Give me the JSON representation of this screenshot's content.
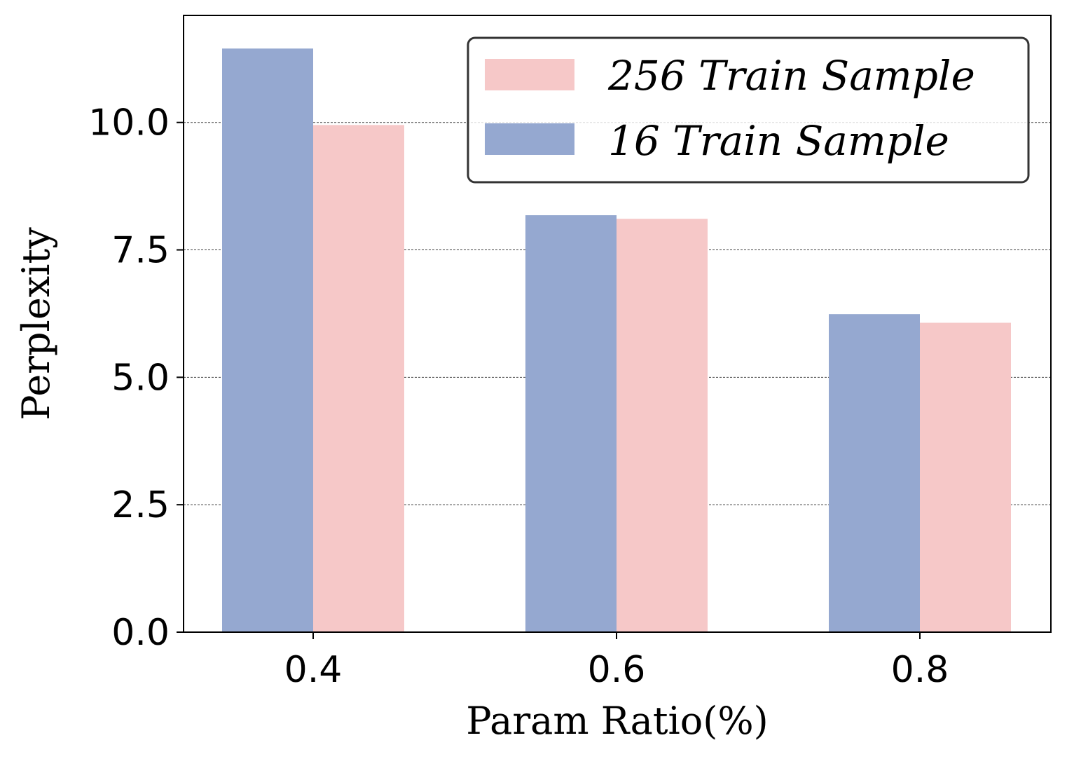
{
  "chart_data": {
    "type": "bar",
    "title": "",
    "xlabel": "Param Ratio(%)",
    "ylabel": "Perplexity",
    "categories": [
      "0.4",
      "0.6",
      "0.8"
    ],
    "series": [
      {
        "name": "16 Train Sample",
        "values": [
          11.45,
          8.18,
          6.24
        ],
        "color": "#95a8d0"
      },
      {
        "name": "256 Train Sample",
        "values": [
          9.95,
          8.11,
          6.07
        ],
        "color": "#f6c8c8"
      }
    ],
    "ylim": [
      0,
      12.1
    ],
    "yticks": [
      "0.0",
      "2.5",
      "5.0",
      "7.5",
      "10.0"
    ],
    "ytick_values": [
      0,
      2.5,
      5,
      7.5,
      10
    ],
    "grid": "horizontal dashed",
    "legend": {
      "placement": "top-right",
      "entries": [
        "256 Train Sample",
        "16 Train Sample"
      ]
    }
  }
}
